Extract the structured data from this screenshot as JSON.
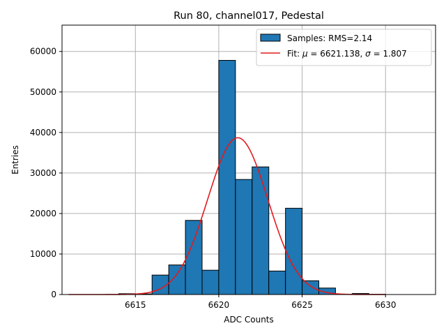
{
  "chart_data": {
    "type": "bar",
    "title": "Run 80, channel017, Pedestal",
    "xlabel": "ADC Counts",
    "ylabel": "Entries",
    "xlim": [
      6610.6,
      6633.0
    ],
    "ylim": [
      0,
      66500
    ],
    "xticks": [
      6615,
      6620,
      6625,
      6630
    ],
    "yticks": [
      0,
      10000,
      20000,
      30000,
      40000,
      50000,
      60000
    ],
    "grid": true,
    "legend_position": "top-right",
    "bin_width": 1,
    "bins": [
      {
        "x0": 6614,
        "value": 200
      },
      {
        "x0": 6615,
        "value": 150
      },
      {
        "x0": 6616,
        "value": 4800
      },
      {
        "x0": 6617,
        "value": 7300
      },
      {
        "x0": 6618,
        "value": 18300
      },
      {
        "x0": 6619,
        "value": 6000
      },
      {
        "x0": 6620,
        "value": 57800
      },
      {
        "x0": 6621,
        "value": 28400
      },
      {
        "x0": 6622,
        "value": 31500
      },
      {
        "x0": 6623,
        "value": 5800
      },
      {
        "x0": 6624,
        "value": 21300
      },
      {
        "x0": 6625,
        "value": 3400
      },
      {
        "x0": 6626,
        "value": 1600
      },
      {
        "x0": 6627,
        "value": 80
      },
      {
        "x0": 6628,
        "value": 250
      },
      {
        "x0": 6629,
        "value": 60
      }
    ],
    "fit": {
      "mu": 6621.138,
      "sigma": 1.807,
      "amplitude": 38700,
      "x_range": [
        6611,
        6630
      ]
    },
    "series": [
      {
        "name": "Samples: RMS=2.14",
        "kind": "histogram",
        "color": "#1f77b4"
      },
      {
        "name": "Fit: μ = 6621.138, σ = 1.807",
        "kind": "line",
        "color": "#e41a1c"
      }
    ],
    "legend": {
      "hist_label": "Samples: RMS=2.14",
      "fit_label_prefix": "Fit: ",
      "fit_mu_symbol": "μ",
      "fit_mu_value": " = 6621.138, ",
      "fit_sigma_symbol": "σ",
      "fit_sigma_value": " = 1.807"
    }
  }
}
